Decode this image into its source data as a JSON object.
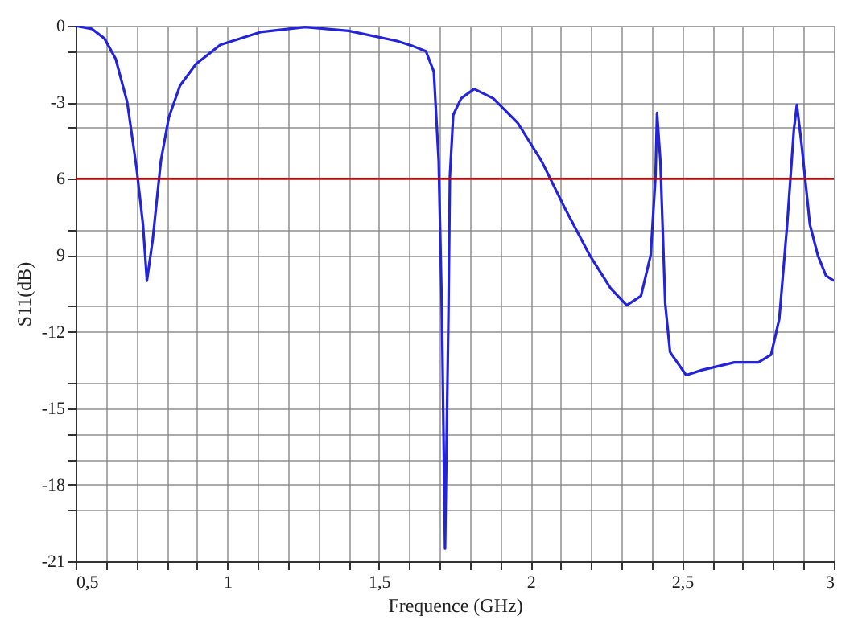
{
  "chart_data": {
    "type": "line",
    "xlabel": "Frequence (GHz)",
    "ylabel": "S11(dB)",
    "xlim": [
      0.5,
      3
    ],
    "ylim": [
      -21,
      0
    ],
    "xticks": [
      {
        "value": 0.5,
        "label": "0,5"
      },
      {
        "value": 0.6,
        "label": null
      },
      {
        "value": 0.7,
        "label": null
      },
      {
        "value": 0.8,
        "label": null
      },
      {
        "value": 0.9,
        "label": null
      },
      1,
      {
        "value": 1.1,
        "label": null
      },
      {
        "value": 1.2,
        "label": null
      },
      {
        "value": 1.3,
        "label": null
      },
      {
        "value": 1.4,
        "label": null
      },
      {
        "value": 1.5,
        "label": "1,5"
      },
      {
        "value": 1.6,
        "label": null
      },
      {
        "value": 1.7,
        "label": null
      },
      {
        "value": 1.8,
        "label": null
      },
      {
        "value": 1.9,
        "label": null
      },
      2,
      {
        "value": 2.1,
        "label": null
      },
      {
        "value": 2.2,
        "label": null
      },
      {
        "value": 2.3,
        "label": null
      },
      {
        "value": 2.4,
        "label": null
      },
      {
        "value": 2.5,
        "label": "2,5"
      },
      {
        "value": 2.6,
        "label": null
      },
      {
        "value": 2.7,
        "label": null
      },
      {
        "value": 2.8,
        "label": null
      },
      {
        "value": 2.9,
        "label": null
      },
      3
    ],
    "yticks": [
      0,
      {
        "value": -1,
        "label": null
      },
      -3,
      {
        "value": -4,
        "label": null
      },
      {
        "value": -6,
        "label": "6"
      },
      {
        "value": -8,
        "label": null
      },
      {
        "value": -9,
        "label": "9"
      },
      {
        "value": -11,
        "label": null
      },
      -12,
      {
        "value": -14,
        "label": null
      },
      -15,
      {
        "value": -16,
        "label": null
      },
      {
        "value": -17,
        "label": null
      },
      -18,
      {
        "value": -19,
        "label": null
      },
      -21
    ],
    "grid": true,
    "legend": false,
    "marker": "none",
    "line_style": "solid",
    "ref_lines": [
      {
        "axis": "y",
        "value": -6,
        "color": "#cc0000"
      }
    ],
    "series": [
      {
        "color": "#2323d8",
        "x": [
          0.5,
          0.553,
          0.595,
          0.632,
          0.67,
          0.701,
          0.722,
          0.735,
          0.754,
          0.781,
          0.807,
          0.844,
          0.897,
          0.977,
          1.109,
          1.257,
          1.4,
          1.56,
          1.612,
          1.655,
          1.681,
          1.697,
          1.708,
          1.718,
          1.729,
          1.734,
          1.745,
          1.771,
          1.814,
          1.877,
          1.957,
          2.036,
          2.115,
          2.195,
          2.264,
          2.317,
          2.364,
          2.396,
          2.412,
          2.417,
          2.428,
          2.444,
          2.46,
          2.513,
          2.566,
          2.672,
          2.751,
          2.793,
          2.82,
          2.846,
          2.868,
          2.878,
          2.894,
          2.921,
          2.947,
          2.974,
          3.0
        ],
        "values": [
          0,
          -0.12,
          -0.5,
          -1.3,
          -3.0,
          -5.6,
          -7.8,
          -10.0,
          -8.4,
          -5.3,
          -3.6,
          -2.35,
          -1.5,
          -0.75,
          -0.25,
          -0.05,
          -0.2,
          -0.6,
          -0.8,
          -1.0,
          -1.8,
          -5.3,
          -11.5,
          -20.5,
          -11.5,
          -5.9,
          -3.5,
          -2.85,
          -2.48,
          -2.85,
          -3.8,
          -5.3,
          -7.2,
          -9.0,
          -10.3,
          -10.96,
          -10.6,
          -9.0,
          -5.9,
          -3.42,
          -5.3,
          -10.9,
          -12.8,
          -13.7,
          -13.5,
          -13.2,
          -13.2,
          -12.9,
          -11.5,
          -7.8,
          -4.1,
          -3.1,
          -4.7,
          -7.8,
          -9.0,
          -9.8,
          -10.0
        ]
      }
    ]
  }
}
